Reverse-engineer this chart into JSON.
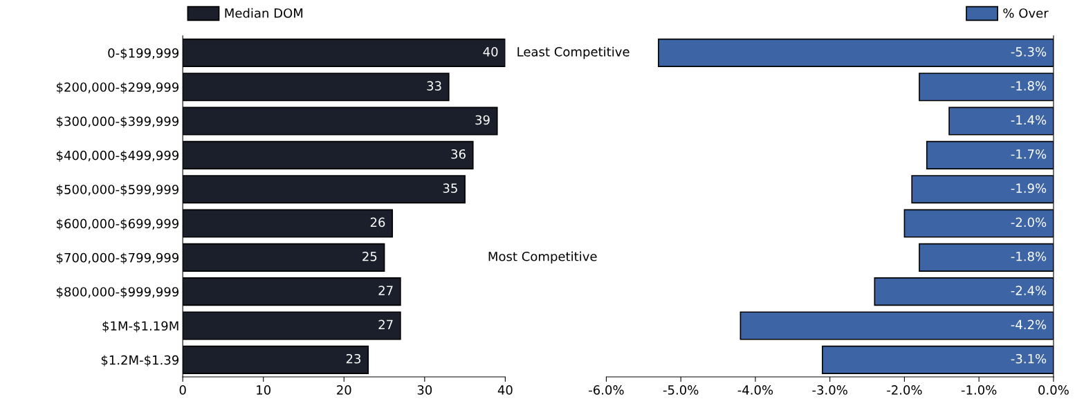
{
  "chart_data": [
    {
      "type": "bar",
      "orientation": "horizontal",
      "categories": [
        "0-$199,999",
        "$200,000-$299,999",
        "$300,000-$399,999",
        "$400,000-$499,999",
        "$500,000-$599,999",
        "$600,000-$699,999",
        "$700,000-$799,999",
        "$800,000-$999,999",
        "$1M-$1.19M",
        "$1.2M-$1.39"
      ],
      "series": [
        {
          "name": "Median DOM",
          "color": "#1b1f2b",
          "values": [
            40,
            33,
            39,
            36,
            35,
            26,
            25,
            27,
            27,
            23
          ]
        }
      ],
      "xlim": [
        0,
        40
      ],
      "xticks": [
        0,
        10,
        20,
        30,
        40
      ],
      "data_labels": true,
      "legend": "top left",
      "grid": false,
      "annotations": [
        "Least Competitive",
        "Most Competitive"
      ]
    },
    {
      "type": "bar",
      "orientation": "horizontal",
      "categories": [
        null,
        null,
        null,
        null,
        null,
        null,
        null,
        null,
        null,
        null
      ],
      "series": [
        {
          "name": "% Over",
          "color": "#3d65a5",
          "values": [
            -5.3,
            -1.8,
            -1.4,
            -1.7,
            -1.9,
            -2.0,
            -1.8,
            -2.4,
            -4.2,
            -3.1
          ],
          "value_labels": [
            "-5.3%",
            "-1.8%",
            "-1.4%",
            "-1.7%",
            "-1.9%",
            "-2.0%",
            "-1.8%",
            "-2.4%",
            "-4.2%",
            "-3.1%"
          ]
        }
      ],
      "xlim": [
        -6,
        0
      ],
      "xticks": [
        {
          "value": -6,
          "label": "-6.0%"
        },
        {
          "value": -5,
          "label": "-5.0%"
        },
        {
          "value": -4,
          "label": "-4.0%"
        },
        {
          "value": -3,
          "label": "-3.0%"
        },
        {
          "value": -2,
          "label": "-2.0%"
        },
        {
          "value": -1,
          "label": "-1.0%"
        },
        {
          "value": 0,
          "label": "0.0%"
        }
      ],
      "tick_labels": "x",
      "legend": "top right",
      "grid": false
    }
  ]
}
